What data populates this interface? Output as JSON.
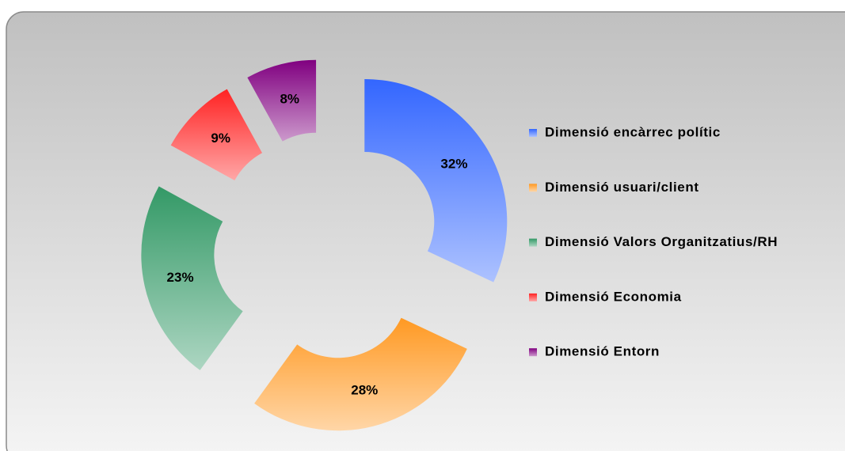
{
  "chart_data": {
    "type": "donut",
    "categories": [
      "Dimensió encàrrec polític",
      "Dimensió usuari/client",
      "Dimensió Valors Organitzatius/RH",
      "Dimensió Economia",
      "Dimensió Entorn"
    ],
    "values": [
      32,
      28,
      23,
      9,
      8
    ],
    "value_labels": [
      "32%",
      "28%",
      "23%",
      "9%",
      "8%"
    ],
    "colors": [
      "#3366ff",
      "#ff9922",
      "#339966",
      "#ff2222",
      "#800080"
    ],
    "legend": "right"
  }
}
